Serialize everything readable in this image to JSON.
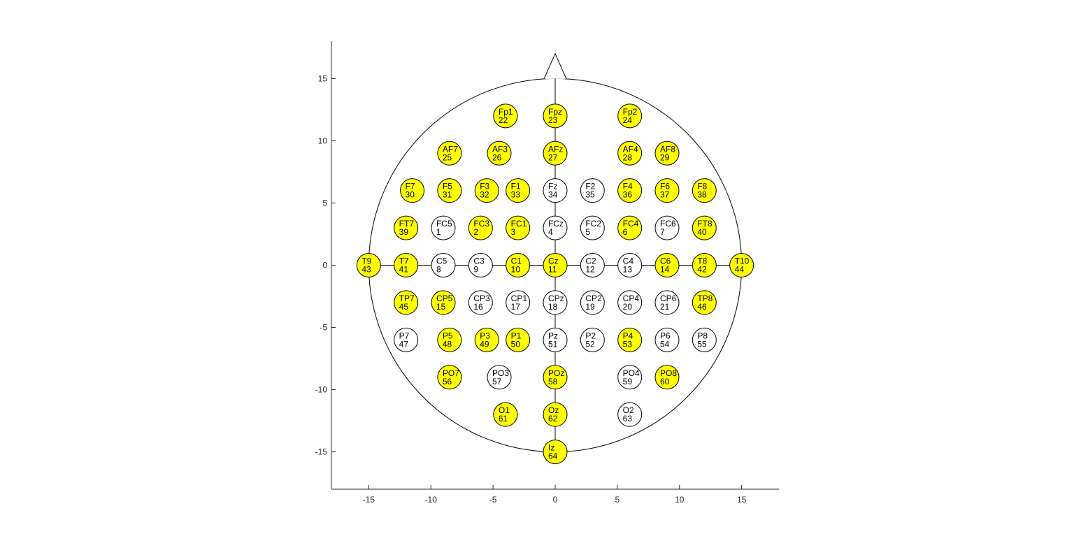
{
  "chart_data": {
    "type": "scatter",
    "title": "",
    "xlabel": "",
    "ylabel": "",
    "xlim": [
      -18,
      18
    ],
    "ylim": [
      -18,
      18
    ],
    "xticks": [
      -15,
      -10,
      -5,
      0,
      5,
      10,
      15
    ],
    "yticks": [
      -15,
      -10,
      -5,
      0,
      5,
      10,
      15
    ],
    "head": {
      "radius": 15,
      "nose_tip": [
        0,
        17
      ],
      "nose_base_halfwidth": 0.9
    },
    "midlines": {
      "horizontal": [
        -15,
        15
      ],
      "vertical": [
        -15,
        15
      ]
    },
    "highlight_color": "#ffff00",
    "default_color": "#ffffff",
    "electrodes": [
      {
        "name": "Fp1",
        "index": 22,
        "x": -4,
        "y": 12,
        "highlighted": true
      },
      {
        "name": "Fpz",
        "index": 23,
        "x": 0,
        "y": 12,
        "highlighted": true
      },
      {
        "name": "Fp2",
        "index": 24,
        "x": 6,
        "y": 12,
        "highlighted": true
      },
      {
        "name": "AF7",
        "index": 25,
        "x": -8.5,
        "y": 9,
        "highlighted": true
      },
      {
        "name": "AF3",
        "index": 26,
        "x": -4.5,
        "y": 9,
        "highlighted": true
      },
      {
        "name": "AFz",
        "index": 27,
        "x": 0,
        "y": 9,
        "highlighted": true
      },
      {
        "name": "AF4",
        "index": 28,
        "x": 6,
        "y": 9,
        "highlighted": true
      },
      {
        "name": "AF8",
        "index": 29,
        "x": 9,
        "y": 9,
        "highlighted": true
      },
      {
        "name": "F7",
        "index": 30,
        "x": -11.5,
        "y": 6,
        "highlighted": true
      },
      {
        "name": "F5",
        "index": 31,
        "x": -8.5,
        "y": 6,
        "highlighted": true
      },
      {
        "name": "F3",
        "index": 32,
        "x": -5.5,
        "y": 6,
        "highlighted": true
      },
      {
        "name": "F1",
        "index": 33,
        "x": -3,
        "y": 6,
        "highlighted": true
      },
      {
        "name": "Fz",
        "index": 34,
        "x": 0,
        "y": 6,
        "highlighted": false
      },
      {
        "name": "F2",
        "index": 35,
        "x": 3,
        "y": 6,
        "highlighted": false
      },
      {
        "name": "F4",
        "index": 36,
        "x": 6,
        "y": 6,
        "highlighted": true
      },
      {
        "name": "F6",
        "index": 37,
        "x": 9,
        "y": 6,
        "highlighted": true
      },
      {
        "name": "F8",
        "index": 38,
        "x": 12,
        "y": 6,
        "highlighted": true
      },
      {
        "name": "FT7",
        "index": 39,
        "x": -12,
        "y": 3,
        "highlighted": true
      },
      {
        "name": "FC5",
        "index": 1,
        "x": -9,
        "y": 3,
        "highlighted": false
      },
      {
        "name": "FC3",
        "index": 2,
        "x": -6,
        "y": 3,
        "highlighted": true
      },
      {
        "name": "FC1",
        "index": 3,
        "x": -3,
        "y": 3,
        "highlighted": true
      },
      {
        "name": "FCz",
        "index": 4,
        "x": 0,
        "y": 3,
        "highlighted": false
      },
      {
        "name": "FC2",
        "index": 5,
        "x": 3,
        "y": 3,
        "highlighted": false
      },
      {
        "name": "FC4",
        "index": 6,
        "x": 6,
        "y": 3,
        "highlighted": true
      },
      {
        "name": "FC6",
        "index": 7,
        "x": 9,
        "y": 3,
        "highlighted": false
      },
      {
        "name": "FT8",
        "index": 40,
        "x": 12,
        "y": 3,
        "highlighted": true
      },
      {
        "name": "T9",
        "index": 43,
        "x": -15,
        "y": 0,
        "highlighted": true
      },
      {
        "name": "T7",
        "index": 41,
        "x": -12,
        "y": 0,
        "highlighted": true
      },
      {
        "name": "C5",
        "index": 8,
        "x": -9,
        "y": 0,
        "highlighted": false
      },
      {
        "name": "C3",
        "index": 9,
        "x": -6,
        "y": 0,
        "highlighted": false
      },
      {
        "name": "C1",
        "index": 10,
        "x": -3,
        "y": 0,
        "highlighted": true
      },
      {
        "name": "Cz",
        "index": 11,
        "x": 0,
        "y": 0,
        "highlighted": true
      },
      {
        "name": "C2",
        "index": 12,
        "x": 3,
        "y": 0,
        "highlighted": false
      },
      {
        "name": "C4",
        "index": 13,
        "x": 6,
        "y": 0,
        "highlighted": false
      },
      {
        "name": "C6",
        "index": 14,
        "x": 9,
        "y": 0,
        "highlighted": true
      },
      {
        "name": "T8",
        "index": 42,
        "x": 12,
        "y": 0,
        "highlighted": true
      },
      {
        "name": "T10",
        "index": 44,
        "x": 15,
        "y": 0,
        "highlighted": true
      },
      {
        "name": "TP7",
        "index": 45,
        "x": -12,
        "y": -3,
        "highlighted": true
      },
      {
        "name": "CP5",
        "index": 15,
        "x": -9,
        "y": -3,
        "highlighted": true
      },
      {
        "name": "CP3",
        "index": 16,
        "x": -6,
        "y": -3,
        "highlighted": false
      },
      {
        "name": "CP1",
        "index": 17,
        "x": -3,
        "y": -3,
        "highlighted": false
      },
      {
        "name": "CPz",
        "index": 18,
        "x": 0,
        "y": -3,
        "highlighted": false
      },
      {
        "name": "CP2",
        "index": 19,
        "x": 3,
        "y": -3,
        "highlighted": false
      },
      {
        "name": "CP4",
        "index": 20,
        "x": 6,
        "y": -3,
        "highlighted": false
      },
      {
        "name": "CP6",
        "index": 21,
        "x": 9,
        "y": -3,
        "highlighted": false
      },
      {
        "name": "TP8",
        "index": 46,
        "x": 12,
        "y": -3,
        "highlighted": true
      },
      {
        "name": "P7",
        "index": 47,
        "x": -12,
        "y": -6,
        "highlighted": false
      },
      {
        "name": "P5",
        "index": 48,
        "x": -8.5,
        "y": -6,
        "highlighted": true
      },
      {
        "name": "P3",
        "index": 49,
        "x": -5.5,
        "y": -6,
        "highlighted": true
      },
      {
        "name": "P1",
        "index": 50,
        "x": -3,
        "y": -6,
        "highlighted": true
      },
      {
        "name": "Pz",
        "index": 51,
        "x": 0,
        "y": -6,
        "highlighted": false
      },
      {
        "name": "P2",
        "index": 52,
        "x": 3,
        "y": -6,
        "highlighted": false
      },
      {
        "name": "P4",
        "index": 53,
        "x": 6,
        "y": -6,
        "highlighted": true
      },
      {
        "name": "P6",
        "index": 54,
        "x": 9,
        "y": -6,
        "highlighted": false
      },
      {
        "name": "P8",
        "index": 55,
        "x": 12,
        "y": -6,
        "highlighted": false
      },
      {
        "name": "PO7",
        "index": 56,
        "x": -8.5,
        "y": -9,
        "highlighted": true
      },
      {
        "name": "PO3",
        "index": 57,
        "x": -4.5,
        "y": -9,
        "highlighted": false
      },
      {
        "name": "POz",
        "index": 58,
        "x": 0,
        "y": -9,
        "highlighted": true
      },
      {
        "name": "PO4",
        "index": 59,
        "x": 6,
        "y": -9,
        "highlighted": false
      },
      {
        "name": "PO8",
        "index": 60,
        "x": 9,
        "y": -9,
        "highlighted": true
      },
      {
        "name": "O1",
        "index": 61,
        "x": -4,
        "y": -12,
        "highlighted": true
      },
      {
        "name": "Oz",
        "index": 62,
        "x": 0,
        "y": -12,
        "highlighted": true
      },
      {
        "name": "O2",
        "index": 63,
        "x": 6,
        "y": -12,
        "highlighted": false
      },
      {
        "name": "Iz",
        "index": 64,
        "x": 0,
        "y": -15,
        "highlighted": true
      }
    ]
  }
}
